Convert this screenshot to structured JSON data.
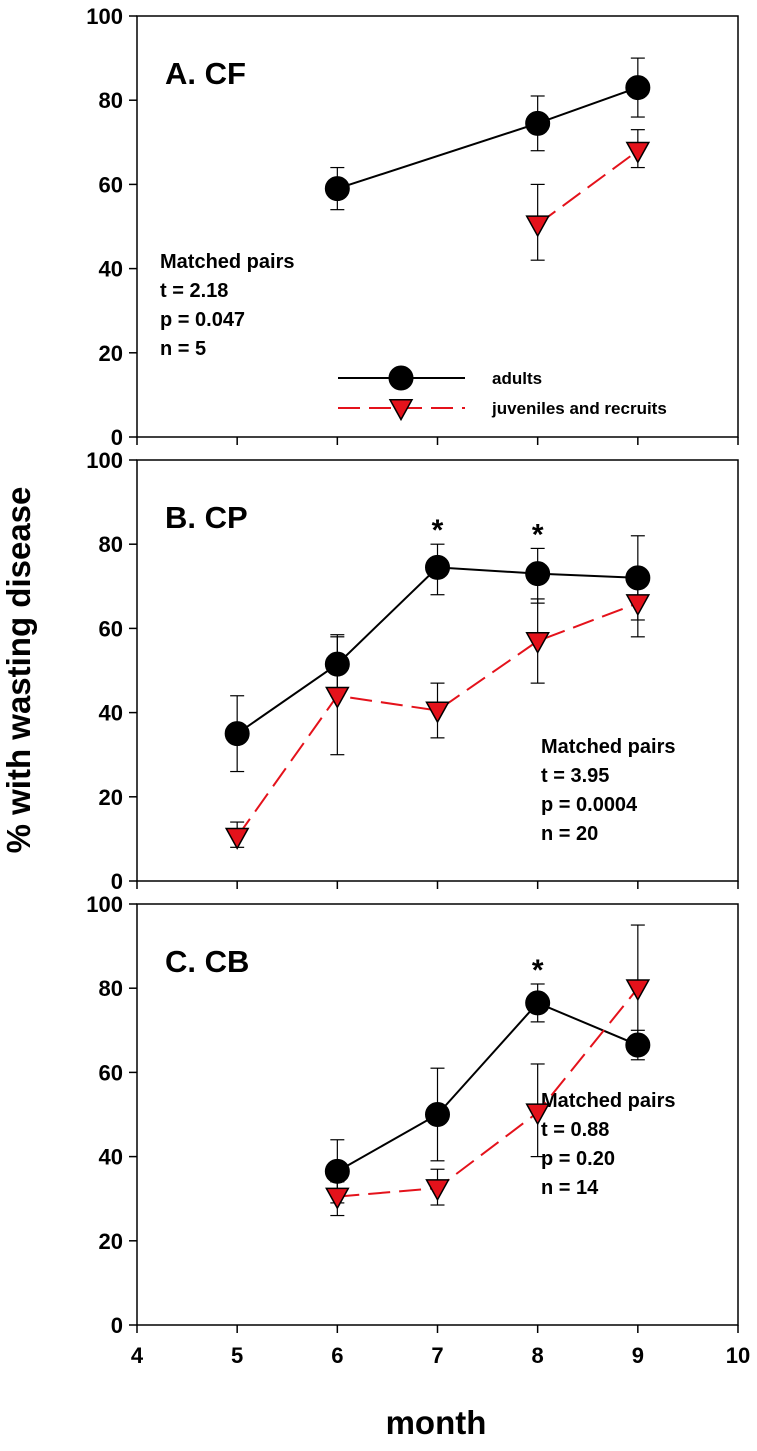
{
  "colors": {
    "adults": "#000000",
    "juveniles": "#e4121b",
    "axis": "#000000",
    "background": "#ffffff"
  },
  "ylabel": "% with wasting disease",
  "xlabel": "month",
  "legend": {
    "placement": "bottom-right of panel A",
    "adults_label": "adults",
    "juveniles_label": "juveniles and recruits"
  },
  "chart_data": [
    {
      "type": "line",
      "title": "A. CF",
      "xlim": [
        4,
        10
      ],
      "ylim": [
        0,
        100
      ],
      "x_ticks": [
        4,
        5,
        6,
        7,
        8,
        9,
        10
      ],
      "y_ticks": [
        0,
        20,
        40,
        60,
        80,
        100
      ],
      "stats": [
        "Matched pairs",
        "t = 2.18",
        "p = 0.047",
        "n = 5"
      ],
      "significant_months": [],
      "series": [
        {
          "name": "adults",
          "x": [
            6,
            8,
            9
          ],
          "y": [
            59,
            74.5,
            83
          ],
          "err_low": [
            54,
            68,
            76
          ],
          "err_high": [
            64,
            81,
            90
          ]
        },
        {
          "name": "juveniles and recruits",
          "x": [
            8,
            9
          ],
          "y": [
            50.5,
            68
          ],
          "err_low": [
            42,
            64
          ],
          "err_high": [
            60,
            73
          ]
        }
      ]
    },
    {
      "type": "line",
      "title": "B. CP",
      "xlim": [
        4,
        10
      ],
      "ylim": [
        0,
        100
      ],
      "x_ticks": [
        4,
        5,
        6,
        7,
        8,
        9,
        10
      ],
      "y_ticks": [
        0,
        20,
        40,
        60,
        80,
        100
      ],
      "stats": [
        "Matched pairs",
        "t = 3.95",
        "p = 0.0004",
        "n = 20"
      ],
      "significant_months": [
        7,
        8
      ],
      "series": [
        {
          "name": "adults",
          "x": [
            5,
            6,
            7,
            8,
            9
          ],
          "y": [
            35,
            51.5,
            74.5,
            73,
            72
          ],
          "err_low": [
            26,
            44,
            68,
            66,
            62
          ],
          "err_high": [
            44,
            58.5,
            80,
            79,
            82
          ]
        },
        {
          "name": "juveniles and recruits",
          "x": [
            5,
            6,
            7,
            8,
            9
          ],
          "y": [
            10.5,
            44,
            40.5,
            57,
            66
          ],
          "err_low": [
            8,
            30,
            34,
            47,
            58
          ],
          "err_high": [
            14,
            58,
            47,
            67,
            70
          ]
        }
      ]
    },
    {
      "type": "line",
      "title": "C. CB",
      "xlim": [
        4,
        10
      ],
      "ylim": [
        0,
        100
      ],
      "x_ticks": [
        4,
        5,
        6,
        7,
        8,
        9,
        10
      ],
      "y_ticks": [
        0,
        20,
        40,
        60,
        80,
        100
      ],
      "stats": [
        "Matched pairs",
        "t = 0.88",
        "p = 0.20",
        "n = 14"
      ],
      "significant_months": [
        8
      ],
      "series": [
        {
          "name": "adults",
          "x": [
            6,
            7,
            8,
            9
          ],
          "y": [
            36.5,
            50,
            76.5,
            66.5
          ],
          "err_low": [
            29,
            39,
            72,
            63
          ],
          "err_high": [
            44,
            61,
            81,
            70
          ]
        },
        {
          "name": "juveniles and recruits",
          "x": [
            6,
            7,
            8,
            9
          ],
          "y": [
            30.5,
            32.5,
            50.5,
            80
          ],
          "err_low": [
            26,
            28.5,
            40,
            65
          ],
          "err_high": [
            34,
            37,
            62,
            95
          ]
        }
      ]
    }
  ]
}
